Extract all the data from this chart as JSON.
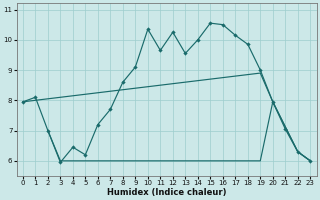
{
  "xlabel": "Humidex (Indice chaleur)",
  "xlim": [
    -0.5,
    23.5
  ],
  "ylim": [
    5.5,
    11.2
  ],
  "yticks": [
    6,
    7,
    8,
    9,
    10,
    11
  ],
  "xticks": [
    0,
    1,
    2,
    3,
    4,
    5,
    6,
    7,
    8,
    9,
    10,
    11,
    12,
    13,
    14,
    15,
    16,
    17,
    18,
    19,
    20,
    21,
    22,
    23
  ],
  "bg_color": "#cce8e8",
  "grid_color": "#9ecece",
  "line_color": "#1a6b6b",
  "line1_x": [
    0,
    1,
    2,
    3,
    4,
    5,
    6,
    7,
    8,
    9,
    10,
    11,
    12,
    13,
    14,
    15,
    16,
    17,
    18,
    19,
    20,
    21,
    22,
    23
  ],
  "line1_y": [
    7.95,
    8.1,
    7.0,
    5.95,
    6.45,
    6.2,
    7.2,
    7.7,
    8.6,
    9.1,
    10.35,
    9.65,
    10.25,
    9.55,
    10.0,
    10.55,
    10.5,
    10.15,
    9.85,
    9.0,
    7.95,
    7.05,
    6.3,
    6.0
  ],
  "line2_x": [
    0,
    19,
    20,
    22,
    23
  ],
  "line2_y": [
    7.95,
    8.9,
    7.95,
    6.3,
    6.0
  ],
  "line3_x": [
    2,
    3,
    14,
    19,
    20,
    22,
    23
  ],
  "line3_y": [
    7.0,
    6.0,
    6.0,
    6.0,
    7.95,
    6.3,
    6.0
  ]
}
